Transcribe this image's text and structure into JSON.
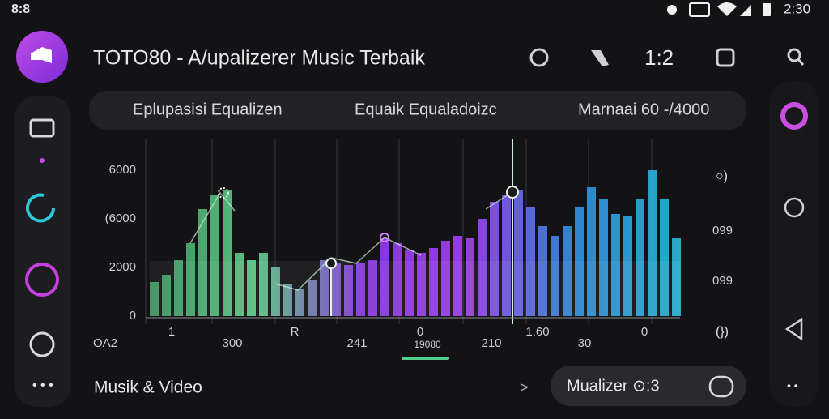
{
  "status_bar": {
    "left": "8:8",
    "time": "2:30"
  },
  "header": {
    "title": "TOTO80 - A/upalizerer Music Terbaik",
    "counter": "1:2"
  },
  "tabs": [
    "Eplupasisi Equalizen",
    "Equaik Equaladoizc",
    "Marnaai 60 -/4000"
  ],
  "equalizer": {
    "ylim": [
      0,
      6000
    ],
    "y_labels": [
      "6000",
      "(6000",
      "2000",
      "0"
    ],
    "right_labels": [
      "099",
      "099"
    ],
    "x_labels": [
      "OA2",
      "1",
      "300",
      "R",
      "241",
      "0",
      "19080",
      "210",
      "1.60",
      "30",
      "0"
    ],
    "colors": [
      "#3f9a63",
      "#5fd08a",
      "#8f3be6",
      "#a23ff2",
      "#2f8fe0",
      "#2ab7d8"
    ],
    "levels": [
      1400,
      1700,
      2300,
      3000,
      4400,
      5000,
      5200,
      2600,
      2300,
      2600,
      2000,
      1300,
      1100,
      1500,
      2300,
      2200,
      2100,
      2200,
      2300,
      3200,
      3000,
      2700,
      2600,
      2800,
      3100,
      3300,
      3200,
      4000,
      4700,
      5000,
      5200,
      4500,
      3700,
      3300,
      3700,
      4500,
      5300,
      4800,
      4200,
      4100,
      4800,
      6000,
      4800,
      3200
    ]
  },
  "footer": {
    "label": "Musik & Video",
    "arrow": ">",
    "button": "Mualizer ⊙:3"
  }
}
